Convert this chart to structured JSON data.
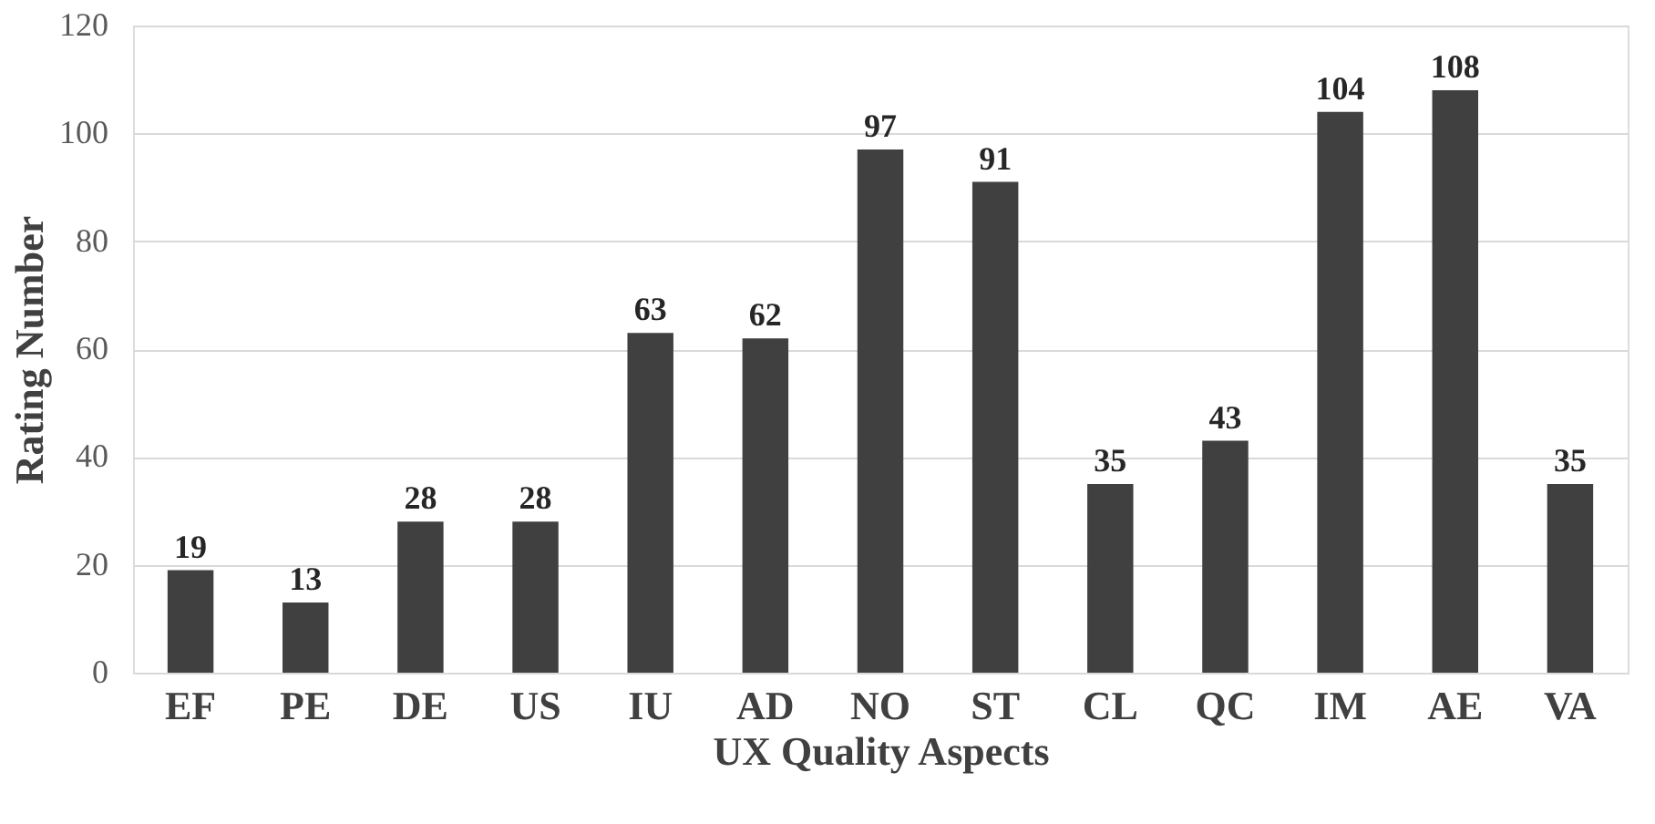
{
  "chart_data": {
    "type": "bar",
    "xlabel": "UX Quality Aspects",
    "ylabel": "Rating Number",
    "categories": [
      "EF",
      "PE",
      "DE",
      "US",
      "IU",
      "AD",
      "NO",
      "ST",
      "CL",
      "QC",
      "IM",
      "AE",
      "VA"
    ],
    "values": [
      19,
      13,
      28,
      28,
      63,
      62,
      97,
      91,
      35,
      43,
      104,
      108,
      35
    ],
    "color": "#404040",
    "ylim": [
      0,
      120
    ],
    "yticks": [
      0,
      20,
      40,
      60,
      80,
      100,
      120
    ],
    "grid": "y",
    "data_labels": true
  }
}
